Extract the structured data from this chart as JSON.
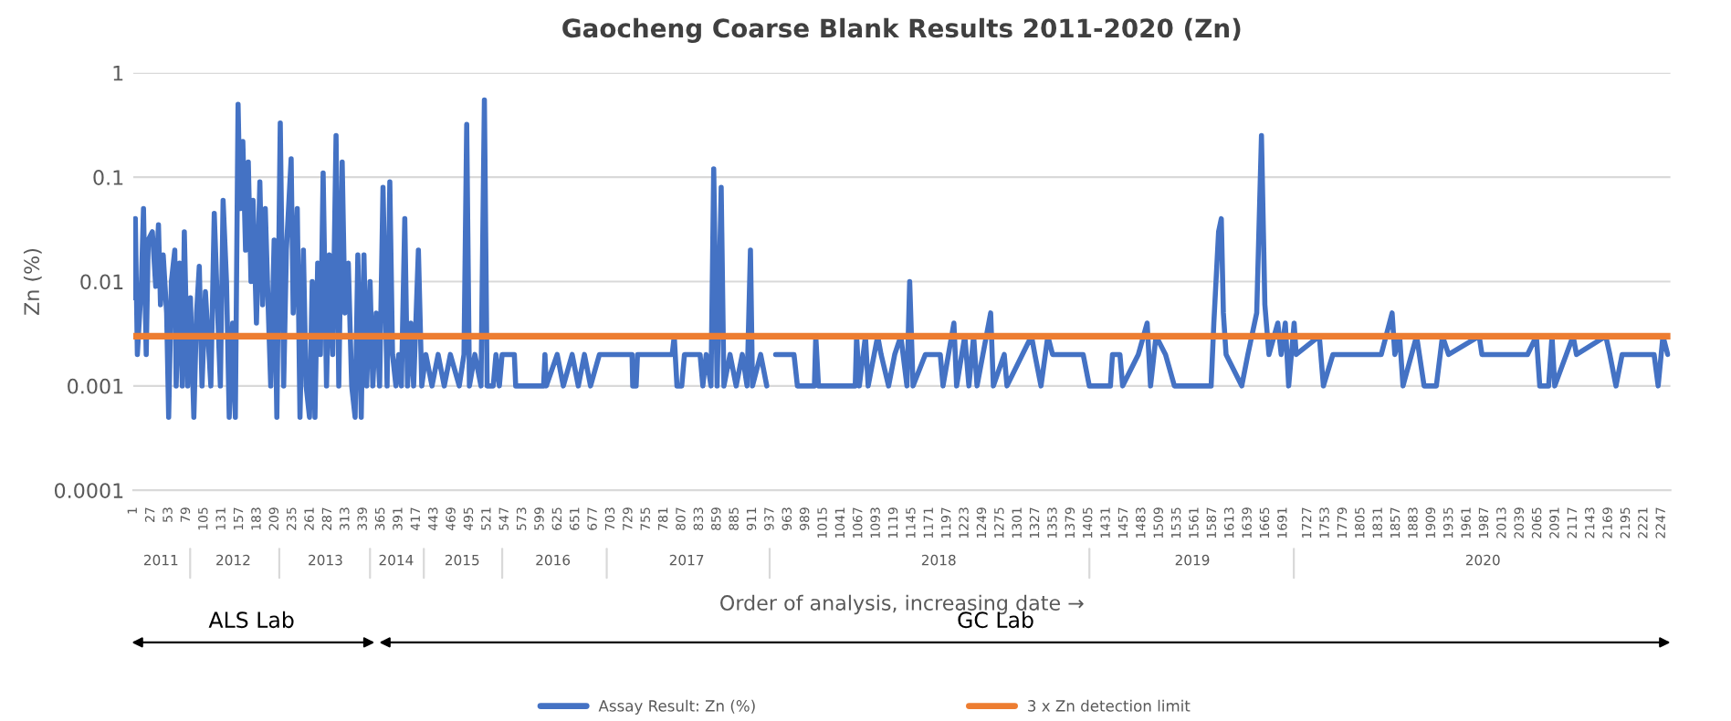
{
  "chart_data": {
    "type": "line",
    "title": "Gaocheng Coarse Blank Results 2011-2020 (Zn)",
    "xlabel": "Order of analysis, increasing date →",
    "ylabel": "Zn (%)",
    "log": "y",
    "grid": "y",
    "legend": "bottom",
    "line_style": "solid",
    "xlim": [
      1,
      2260
    ],
    "ylim": [
      0.0001,
      1
    ],
    "yticks": [
      0.0001,
      0.001,
      0.01,
      0.1,
      1
    ],
    "xticks": [
      1,
      27,
      53,
      79,
      105,
      131,
      157,
      183,
      209,
      235,
      261,
      287,
      313,
      339,
      365,
      391,
      417,
      443,
      469,
      495,
      521,
      547,
      573,
      599,
      625,
      651,
      677,
      703,
      729,
      755,
      781,
      807,
      833,
      859,
      885,
      911,
      937,
      963,
      989,
      1015,
      1041,
      1067,
      1093,
      1119,
      1145,
      1171,
      1197,
      1223,
      1249,
      1275,
      1301,
      1327,
      1353,
      1379,
      1405,
      1431,
      1457,
      1483,
      1509,
      1535,
      1561,
      1587,
      1613,
      1639,
      1665,
      1691,
      1727,
      1753,
      1779,
      1805,
      1831,
      1857,
      1883,
      1909,
      1935,
      1961,
      1987,
      2013,
      2039,
      2065,
      2091,
      2117,
      2143,
      2169,
      2195,
      2221,
      2247
    ],
    "series": [
      {
        "name": "Assay Result: Zn (%)",
        "color": "#4472c4",
        "type": "line",
        "x": [
          1,
          4,
          7,
          13,
          16,
          20,
          23,
          29,
          34,
          38,
          41,
          45,
          50,
          53,
          57,
          62,
          64,
          69,
          73,
          76,
          81,
          85,
          90,
          94,
          98,
          102,
          107,
          115,
          120,
          125,
          129,
          133,
          138,
          142,
          147,
          151,
          155,
          158,
          162,
          166,
          170,
          174,
          177,
          182,
          187,
          191,
          195,
          200,
          203,
          208,
          212,
          217,
          222,
          226,
          233,
          236,
          242,
          246,
          251,
          255,
          260,
          264,
          268,
          272,
          276,
          280,
          285,
          289,
          294,
          299,
          303,
          308,
          312,
          317,
          322,
          327,
          331,
          336,
          340,
          344,
          349,
          353,
          358,
          363,
          368,
          374,
          378,
          382,
          387,
          391,
          395,
          400,
          404,
          409,
          413,
          420,
          425,
          431,
          440,
          449,
          458,
          467,
          480,
          487,
          491,
          495,
          503,
          512,
          517,
          521,
          530,
          534,
          539,
          543,
          561,
          563,
          604,
          606,
          608,
          624,
          633,
          646,
          655,
          664,
          673,
          686,
          700,
          734,
          735,
          740,
          742,
          793,
          796,
          800,
          807,
          811,
          834,
          838,
          843,
          850,
          854,
          859,
          865,
          869,
          878,
          887,
          896,
          903,
          908,
          911,
          923,
          932,
          937,
          945,
          972,
          977,
          1002,
          1004,
          1008,
          1062,
          1064,
          1068,
          1077,
          1081,
          1095,
          1100,
          1111,
          1120,
          1129,
          1138,
          1142,
          1147,
          1165,
          1187,
          1191,
          1207,
          1211,
          1223,
          1229,
          1236,
          1241,
          1261,
          1265,
          1281,
          1285,
          1321,
          1326,
          1335,
          1345,
          1352,
          1397,
          1406,
          1437,
          1440,
          1451,
          1455,
          1478,
          1491,
          1496,
          1504,
          1518,
          1531,
          1585,
          1589,
          1596,
          1600,
          1603,
          1607,
          1630,
          1639,
          1652,
          1659,
          1664,
          1670,
          1683,
          1688,
          1694,
          1699,
          1707,
          1710,
          1744,
          1750,
          1764,
          1835,
          1851,
          1855,
          1862,
          1867,
          1887,
          1898,
          1916,
          1925,
          1934,
          1979,
          1983,
          2050,
          2063,
          2068,
          2081,
          2086,
          2090,
          2117,
          2122,
          2165,
          2171,
          2180,
          2189,
          2236,
          2242,
          2249,
          2256
        ],
        "values": [
          0.007,
          0.04,
          0.002,
          0.01,
          0.05,
          0.002,
          0.025,
          0.03,
          0.009,
          0.035,
          0.006,
          0.018,
          0.005,
          0.0005,
          0.01,
          0.02,
          0.001,
          0.015,
          0.001,
          0.03,
          0.001,
          0.007,
          0.0005,
          0.005,
          0.014,
          0.001,
          0.008,
          0.001,
          0.045,
          0.005,
          0.001,
          0.06,
          0.01,
          0.0005,
          0.004,
          0.0005,
          0.5,
          0.05,
          0.22,
          0.02,
          0.14,
          0.01,
          0.06,
          0.004,
          0.09,
          0.006,
          0.05,
          0.004,
          0.001,
          0.025,
          0.0005,
          0.33,
          0.001,
          0.02,
          0.15,
          0.005,
          0.05,
          0.0005,
          0.02,
          0.001,
          0.0005,
          0.01,
          0.0005,
          0.015,
          0.002,
          0.11,
          0.001,
          0.018,
          0.002,
          0.25,
          0.001,
          0.14,
          0.005,
          0.015,
          0.001,
          0.0005,
          0.018,
          0.0005,
          0.018,
          0.001,
          0.01,
          0.001,
          0.005,
          0.001,
          0.08,
          0.001,
          0.09,
          0.002,
          0.001,
          0.002,
          0.001,
          0.04,
          0.001,
          0.004,
          0.001,
          0.02,
          0.001,
          0.002,
          0.001,
          0.002,
          0.001,
          0.002,
          0.001,
          0.002,
          0.32,
          0.001,
          0.002,
          0.001,
          0.55,
          0.001,
          0.001,
          0.002,
          0.001,
          0.002,
          0.002,
          0.001,
          0.001,
          0.002,
          0.001,
          0.002,
          0.001,
          0.002,
          0.001,
          0.002,
          0.001,
          0.002,
          0.002,
          0.002,
          0.001,
          0.001,
          0.002,
          0.002,
          0.003,
          0.001,
          0.001,
          0.002,
          0.002,
          0.001,
          0.002,
          0.001,
          0.12,
          0.001,
          0.08,
          0.001,
          0.002,
          0.001,
          0.002,
          0.001,
          0.02,
          0.001,
          0.002,
          0.001,
          null,
          0.002,
          0.002,
          0.001,
          0.001,
          0.003,
          0.001,
          0.001,
          0.003,
          0.001,
          0.003,
          0.001,
          0.003,
          0.002,
          0.001,
          0.002,
          0.003,
          0.001,
          0.01,
          0.001,
          0.002,
          0.002,
          0.001,
          0.004,
          0.001,
          0.003,
          0.001,
          0.003,
          0.001,
          0.005,
          0.001,
          0.002,
          0.001,
          0.003,
          0.002,
          0.001,
          0.003,
          0.002,
          0.002,
          0.001,
          0.001,
          0.002,
          0.002,
          0.001,
          0.002,
          0.004,
          0.001,
          0.003,
          0.002,
          0.001,
          0.001,
          0.004,
          0.03,
          0.04,
          0.005,
          0.002,
          0.001,
          0.002,
          0.005,
          0.25,
          0.006,
          0.002,
          0.004,
          0.002,
          0.004,
          0.001,
          0.004,
          0.002,
          0.003,
          0.001,
          0.002,
          0.002,
          0.005,
          0.002,
          0.003,
          0.001,
          0.003,
          0.001,
          0.001,
          0.003,
          0.002,
          0.003,
          0.002,
          0.002,
          0.003,
          0.001,
          0.001,
          0.003,
          0.001,
          0.003,
          0.002,
          0.003,
          0.002,
          0.001,
          0.002,
          0.002,
          0.001,
          0.003,
          0.002
        ]
      },
      {
        "name": "3 x Zn detection limit",
        "color": "#ed7d31",
        "type": "line",
        "x": [
          1,
          2260
        ],
        "values": [
          0.003,
          0.003
        ]
      }
    ],
    "annotations": [
      "2011",
      "2012",
      "2013",
      "2014",
      "2015",
      "2016",
      "2017",
      "2018",
      "2019",
      "2020",
      "ALS Lab",
      "GC Lab"
    ]
  }
}
